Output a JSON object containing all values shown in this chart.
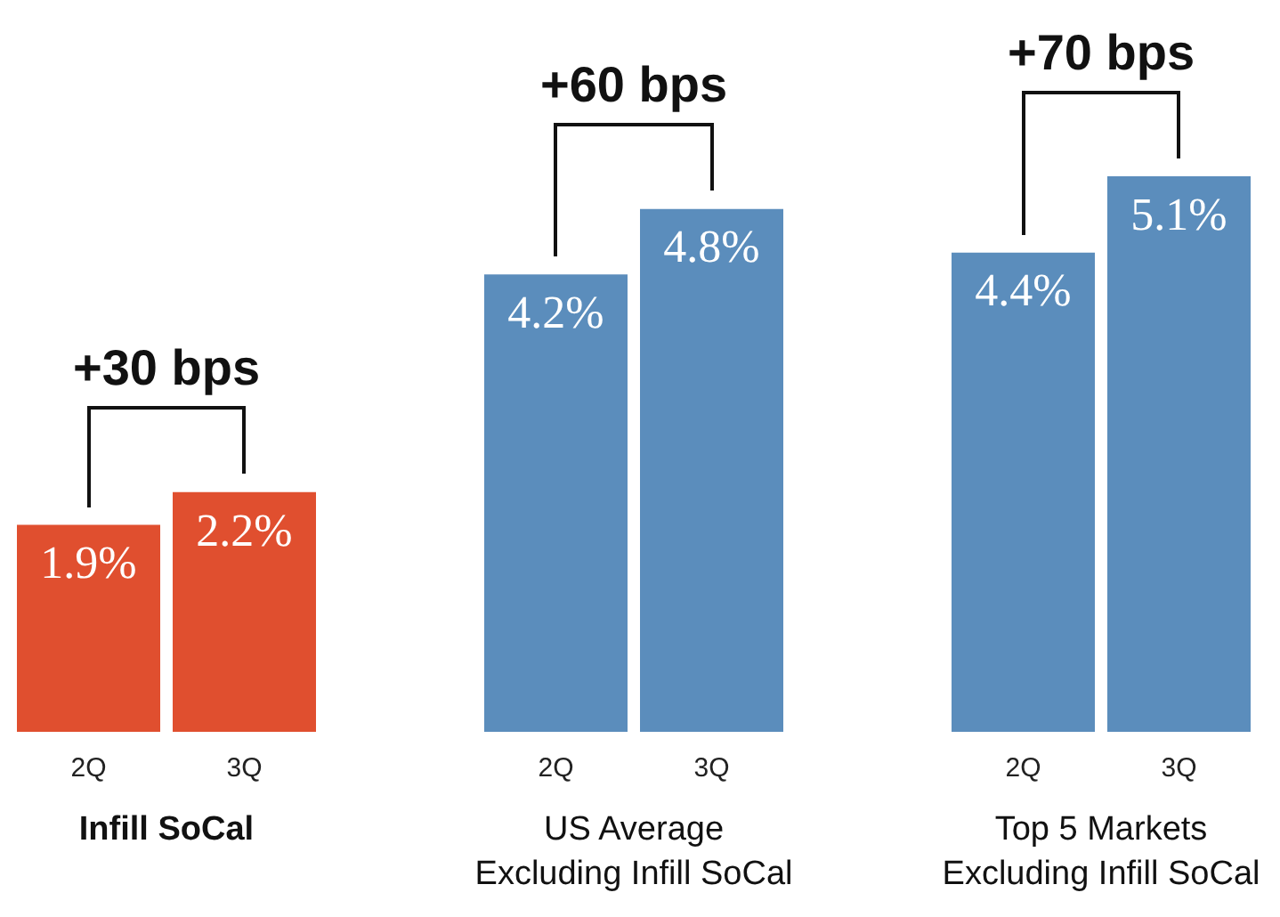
{
  "chart_data": {
    "type": "bar",
    "categories": [
      "2Q",
      "3Q",
      null,
      "2Q",
      "3Q",
      null,
      "2Q",
      "3Q"
    ],
    "values": [
      1.9,
      2.2,
      null,
      4.2,
      4.8,
      null,
      4.4,
      5.1
    ],
    "colors": [
      "#e04f2f",
      "#e04f2f",
      "#5b8dbc",
      "#5b8dbc",
      "#5b8dbc",
      "#5b8dbc",
      "#5b8dbc",
      "#5b8dbc"
    ],
    "value_labels": [
      "1.9%",
      "2.2%",
      null,
      "4.2%",
      "4.8%",
      null,
      "4.4%",
      "5.1%"
    ],
    "tick_labels": "x",
    "grid": false,
    "legend": false,
    "annotations": [
      "+30 bps",
      "+60 bps",
      "+70 bps",
      "Infill SoCal",
      "US Average\nExcluding Infill SoCal",
      "Top 5 Markets\nExcluding Infill SoCal"
    ]
  }
}
